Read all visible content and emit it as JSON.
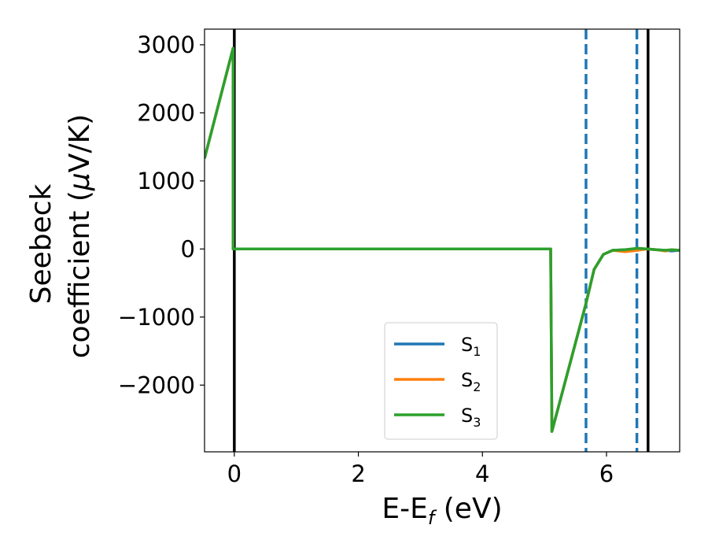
{
  "chart_data": {
    "type": "line",
    "title": "",
    "xlabel_main": "E-E",
    "xlabel_sub": "f",
    "xlabel_unit": " (eV)",
    "ylabel_line1": "Seebeck",
    "ylabel_line2_text": "coefficient  (",
    "ylabel_line2_mu": "μ",
    "ylabel_line2_unit": "V/K)",
    "xlim": [
      -0.48,
      7.18
    ],
    "ylim": [
      -2980,
      3230
    ],
    "x_ticks": [
      0,
      2,
      4,
      6
    ],
    "x_tick_labels": [
      "0",
      "2",
      "4",
      "6"
    ],
    "y_ticks": [
      3000,
      2000,
      1000,
      0,
      -1000,
      -2000
    ],
    "y_tick_labels": [
      "3000",
      "2000",
      "1000",
      "0",
      "−1000",
      "−2000"
    ],
    "grid": false,
    "legend_position": "lower-center",
    "vlines": [
      {
        "x": 0.0,
        "style": "solid",
        "color": "#000000"
      },
      {
        "x": 6.67,
        "style": "solid",
        "color": "#000000"
      },
      {
        "x": 5.67,
        "style": "dashed",
        "color": "#1f77b4"
      },
      {
        "x": 6.49,
        "style": "dashed",
        "color": "#1f77b4"
      }
    ],
    "series": [
      {
        "name_main": "S",
        "name_sub": "1",
        "color": "#1f77b4",
        "x": [
          -0.48,
          -0.02,
          -0.02,
          5.1,
          5.12,
          5.67,
          5.8,
          5.95,
          6.1,
          6.3,
          6.5,
          6.65,
          6.8,
          6.95,
          7.05,
          7.18
        ],
        "y": [
          1330,
          2950,
          0,
          0,
          -2680,
          -800,
          -300,
          -80,
          -20,
          -10,
          0,
          0,
          -10,
          -20,
          -30,
          -20
        ]
      },
      {
        "name_main": "S",
        "name_sub": "2",
        "color": "#ff7f0e",
        "x": [
          -0.48,
          -0.02,
          -0.02,
          5.1,
          5.12,
          5.67,
          5.8,
          5.95,
          6.1,
          6.3,
          6.5,
          6.65,
          6.8,
          6.95,
          7.05,
          7.18
        ],
        "y": [
          1330,
          2950,
          0,
          0,
          -2680,
          -800,
          -300,
          -80,
          -20,
          -40,
          -20,
          0,
          -10,
          -30,
          -10,
          -20
        ]
      },
      {
        "name_main": "S",
        "name_sub": "3",
        "color": "#2ca02c",
        "x": [
          -0.48,
          -0.02,
          -0.02,
          5.1,
          5.12,
          5.67,
          5.8,
          5.95,
          6.1,
          6.3,
          6.5,
          6.65,
          6.8,
          6.95,
          7.05,
          7.18
        ],
        "y": [
          1330,
          2950,
          0,
          0,
          -2680,
          -800,
          -300,
          -80,
          -20,
          -10,
          10,
          0,
          -10,
          -20,
          -10,
          -20
        ]
      }
    ]
  }
}
